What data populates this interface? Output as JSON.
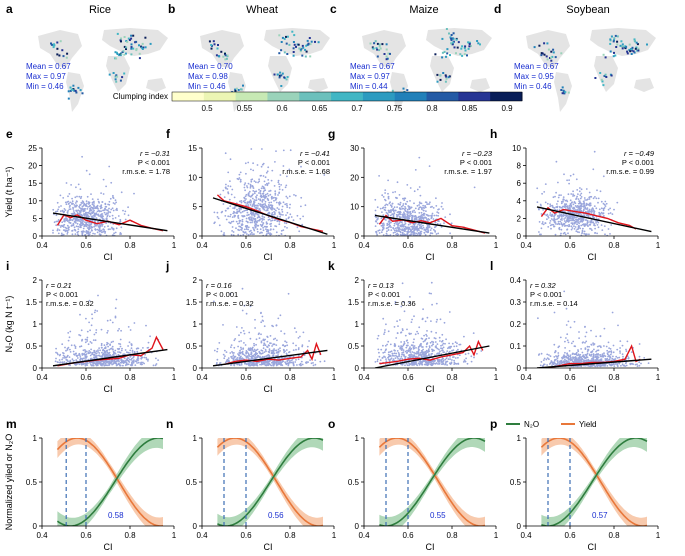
{
  "colors": {
    "scatter": "#9aa6dc",
    "mean_line": "#e0141b",
    "fit_line": "#000000",
    "n2o": "#2e7d3e",
    "n2o_band": "#8fc79a",
    "yield": "#e8773a",
    "yield_band": "#f5b891",
    "vline": "#3d6fb5",
    "stats_text": "#1a2fd0",
    "land": "#e4e4e4"
  },
  "panels_a_to_d": [
    {
      "letter": "a",
      "title": "Rice",
      "mean": "Mean = 0.67",
      "max": "Max = 0.97",
      "min": "Min = 0.46"
    },
    {
      "letter": "b",
      "title": "Wheat",
      "mean": "Mean = 0.70",
      "max": "Max = 0.98",
      "min": "Min = 0.46"
    },
    {
      "letter": "c",
      "title": "Maize",
      "mean": "Mean = 0.67",
      "max": "Max = 0.97",
      "min": "Min = 0.44"
    },
    {
      "letter": "d",
      "title": "Soybean",
      "mean": "Mean = 0.67",
      "max": "Max = 0.95",
      "min": "Min = 0.46"
    }
  ],
  "colorbar": {
    "label": "Clumping index",
    "ticks": [
      "0.5",
      "0.55",
      "0.6",
      "0.65",
      "0.7",
      "0.75",
      "0.8",
      "0.85",
      "0.9"
    ],
    "colors": [
      "#ffffcc",
      "#ecf5b4",
      "#c7e9b4",
      "#9ad3ba",
      "#6cc0bc",
      "#41b6c4",
      "#2c9bc0",
      "#2180b9",
      "#235aa5",
      "#253494",
      "#081d58"
    ]
  },
  "chart_data": [
    {
      "letter": "e",
      "type": "scatter",
      "crop": "Rice",
      "xlabel": "CI",
      "ylabel": "Yield (t ha⁻¹)",
      "xlim": [
        0.4,
        1.0
      ],
      "ylim": [
        0,
        25
      ],
      "xticks": [
        "0.4",
        "0.6",
        "0.8",
        "1"
      ],
      "yticks": [
        "0",
        "5",
        "10",
        "15",
        "20",
        "25"
      ],
      "r": "r = −0.31",
      "p": "P < 0.001",
      "rmse": "r.m.s.e. = 1.78",
      "fit": [
        [
          0.45,
          6.5
        ],
        [
          0.97,
          1.5
        ]
      ],
      "center": [
        0.6,
        5
      ],
      "spread": [
        0.075,
        2.8
      ],
      "mean_curve": [
        [
          0.47,
          3
        ],
        [
          0.5,
          6
        ],
        [
          0.53,
          5.2
        ],
        [
          0.56,
          6
        ],
        [
          0.6,
          4.5
        ],
        [
          0.65,
          3.5
        ],
        [
          0.7,
          4.2
        ],
        [
          0.75,
          3.2
        ],
        [
          0.8,
          4.5
        ],
        [
          0.85,
          3
        ],
        [
          0.9,
          2.2
        ],
        [
          0.95,
          1.5
        ]
      ]
    },
    {
      "letter": "f",
      "type": "scatter",
      "crop": "Wheat",
      "xlabel": "CI",
      "ylabel": "",
      "xlim": [
        0.4,
        1.0
      ],
      "ylim": [
        0,
        15
      ],
      "xticks": [
        "0.4",
        "0.6",
        "0.8",
        "1"
      ],
      "yticks": [
        "0",
        "5",
        "10",
        "15"
      ],
      "r": "r = −0.41",
      "p": "P < 0.001",
      "rmse": "r.m.s.e. = 1.68",
      "fit": [
        [
          0.45,
          6.5
        ],
        [
          0.97,
          0.3
        ]
      ],
      "center": [
        0.65,
        4.5
      ],
      "spread": [
        0.08,
        2.8
      ],
      "mean_curve": [
        [
          0.47,
          7
        ],
        [
          0.5,
          6
        ],
        [
          0.55,
          5.5
        ],
        [
          0.6,
          5
        ],
        [
          0.65,
          4.3
        ],
        [
          0.7,
          3.5
        ],
        [
          0.75,
          2.8
        ],
        [
          0.8,
          2.3
        ],
        [
          0.85,
          1.6
        ],
        [
          0.9,
          1.2
        ],
        [
          0.95,
          0.8
        ]
      ]
    },
    {
      "letter": "g",
      "type": "scatter",
      "crop": "Maize",
      "xlabel": "CI",
      "ylabel": "",
      "xlim": [
        0.4,
        1.0
      ],
      "ylim": [
        0,
        30
      ],
      "xticks": [
        "0.4",
        "0.6",
        "0.8",
        "1"
      ],
      "yticks": [
        "0",
        "10",
        "20",
        "30"
      ],
      "r": "r = −0.23",
      "p": "P < 0.001",
      "rmse": "r.m.s.e. = 1.97",
      "fit": [
        [
          0.45,
          7
        ],
        [
          0.97,
          1
        ]
      ],
      "center": [
        0.6,
        5
      ],
      "spread": [
        0.08,
        3.5
      ],
      "mean_curve": [
        [
          0.47,
          4
        ],
        [
          0.5,
          7
        ],
        [
          0.53,
          5
        ],
        [
          0.58,
          5.5
        ],
        [
          0.62,
          4.5
        ],
        [
          0.66,
          5.2
        ],
        [
          0.7,
          4.5
        ],
        [
          0.75,
          6
        ],
        [
          0.8,
          3.5
        ],
        [
          0.85,
          3
        ],
        [
          0.9,
          2
        ],
        [
          0.95,
          1
        ]
      ]
    },
    {
      "letter": "h",
      "type": "scatter",
      "crop": "Soybean",
      "xlabel": "CI",
      "ylabel": "",
      "xlim": [
        0.4,
        1.0
      ],
      "ylim": [
        0,
        10
      ],
      "xticks": [
        "0.4",
        "0.6",
        "0.8",
        "1"
      ],
      "yticks": [
        "0",
        "2",
        "4",
        "6",
        "8",
        "10"
      ],
      "r": "r = −0.49",
      "p": "P < 0.001",
      "rmse": "r.m.s.e. = 0.99",
      "fit": [
        [
          0.45,
          3.3
        ],
        [
          0.97,
          0.5
        ]
      ],
      "center": [
        0.62,
        2.5
      ],
      "spread": [
        0.07,
        1.0
      ],
      "mean_curve": [
        [
          0.47,
          2.2
        ],
        [
          0.5,
          3.2
        ],
        [
          0.53,
          2.6
        ],
        [
          0.57,
          3
        ],
        [
          0.62,
          2.8
        ],
        [
          0.67,
          2.6
        ],
        [
          0.72,
          2.3
        ],
        [
          0.77,
          2
        ],
        [
          0.82,
          1.5
        ],
        [
          0.87,
          1.2
        ],
        [
          0.9,
          0.8
        ]
      ]
    },
    {
      "letter": "i",
      "type": "scatter",
      "crop": "Rice",
      "xlabel": "CI",
      "ylabel": "N₂O (kg N t⁻¹)",
      "xlim": [
        0.4,
        1.0
      ],
      "ylim": [
        0,
        2
      ],
      "xticks": [
        "0.4",
        "0.6",
        "0.8",
        "1"
      ],
      "yticks": [
        "0",
        "0.5",
        "1",
        "1.5",
        "2"
      ],
      "r": "r = 0.21",
      "p": "P < 0.001",
      "rmse": "r.m.s.e. = 0.32",
      "fit": [
        [
          0.45,
          0.05
        ],
        [
          0.97,
          0.42
        ]
      ],
      "center": [
        0.68,
        0.18
      ],
      "spread": [
        0.1,
        0.2
      ],
      "mean_curve": [
        [
          0.47,
          0.05
        ],
        [
          0.55,
          0.12
        ],
        [
          0.6,
          0.15
        ],
        [
          0.65,
          0.18
        ],
        [
          0.7,
          0.2
        ],
        [
          0.75,
          0.22
        ],
        [
          0.8,
          0.3
        ],
        [
          0.85,
          0.28
        ],
        [
          0.9,
          0.45
        ],
        [
          0.92,
          0.7
        ],
        [
          0.95,
          0.42
        ]
      ]
    },
    {
      "letter": "j",
      "type": "scatter",
      "crop": "Wheat",
      "xlabel": "CI",
      "ylabel": "",
      "xlim": [
        0.4,
        1.0
      ],
      "ylim": [
        0,
        2
      ],
      "xticks": [
        "0.4",
        "0.6",
        "0.8",
        "1"
      ],
      "yticks": [
        "0",
        "0.5",
        "1",
        "1.5",
        "2"
      ],
      "r": "r = 0.16",
      "p": "P < 0.001",
      "rmse": "r.m.s.e. = 0.32",
      "fit": [
        [
          0.45,
          0.05
        ],
        [
          0.97,
          0.4
        ]
      ],
      "center": [
        0.68,
        0.18
      ],
      "spread": [
        0.1,
        0.2
      ],
      "mean_curve": [
        [
          0.5,
          0.08
        ],
        [
          0.55,
          0.15
        ],
        [
          0.6,
          0.18
        ],
        [
          0.65,
          0.15
        ],
        [
          0.7,
          0.2
        ],
        [
          0.75,
          0.18
        ],
        [
          0.8,
          0.22
        ],
        [
          0.85,
          0.25
        ],
        [
          0.88,
          0.4
        ],
        [
          0.9,
          0.2
        ],
        [
          0.92,
          0.55
        ],
        [
          0.94,
          0.3
        ]
      ]
    },
    {
      "letter": "k",
      "type": "scatter",
      "crop": "Maize",
      "xlabel": "CI",
      "ylabel": "",
      "xlim": [
        0.4,
        1.0
      ],
      "ylim": [
        0,
        2
      ],
      "xticks": [
        "0.4",
        "0.6",
        "0.8",
        "1"
      ],
      "yticks": [
        "0",
        "0.5",
        "1",
        "1.5",
        "2"
      ],
      "r": "r = 0.13",
      "p": "P < 0.001",
      "rmse": "r.m.s.e. = 0.36",
      "fit": [
        [
          0.45,
          0.0
        ],
        [
          0.97,
          0.5
        ]
      ],
      "center": [
        0.65,
        0.2
      ],
      "spread": [
        0.1,
        0.25
      ],
      "mean_curve": [
        [
          0.47,
          0.1
        ],
        [
          0.55,
          0.15
        ],
        [
          0.6,
          0.2
        ],
        [
          0.65,
          0.22
        ],
        [
          0.7,
          0.18
        ],
        [
          0.75,
          0.25
        ],
        [
          0.8,
          0.3
        ],
        [
          0.85,
          0.35
        ],
        [
          0.88,
          0.5
        ],
        [
          0.9,
          0.3
        ],
        [
          0.92,
          0.6
        ],
        [
          0.94,
          0.4
        ]
      ]
    },
    {
      "letter": "l",
      "type": "scatter",
      "crop": "Soybean",
      "xlabel": "CI",
      "ylabel": "",
      "xlim": [
        0.4,
        1.0
      ],
      "ylim": [
        0,
        0.4
      ],
      "xticks": [
        "0.4",
        "0.6",
        "0.8",
        "1"
      ],
      "yticks": [
        "0",
        "0.1",
        "0.2",
        "0.3",
        "0.4"
      ],
      "r": "r = 0.32",
      "p": "P < 0.001",
      "rmse": "r.m.s.e. = 0.14",
      "fit": [
        [
          0.45,
          0.0
        ],
        [
          0.97,
          0.04
        ]
      ],
      "center": [
        0.68,
        0.025
      ],
      "spread": [
        0.1,
        0.03
      ],
      "mean_curve": [
        [
          0.5,
          0.0
        ],
        [
          0.55,
          0.01
        ],
        [
          0.6,
          0.02
        ],
        [
          0.65,
          0.02
        ],
        [
          0.7,
          0.025
        ],
        [
          0.75,
          0.025
        ],
        [
          0.8,
          0.03
        ],
        [
          0.85,
          0.04
        ],
        [
          0.88,
          0.1
        ],
        [
          0.9,
          0.03
        ],
        [
          0.92,
          0.04
        ]
      ]
    },
    {
      "letter": "m",
      "type": "line",
      "crop": "Rice",
      "xlabel": "CI",
      "ylabel": "Normalized yiled or N₂O",
      "xlim": [
        0.4,
        1.0
      ],
      "ylim": [
        0,
        1
      ],
      "xticks": [
        "0.4",
        "0.6",
        "0.8",
        "1"
      ],
      "yticks": [
        "0",
        "0.5",
        "1"
      ],
      "vlines": [
        0.51,
        0.6
      ],
      "cross_label": "0.58",
      "n2o_min": 0.53,
      "yield_max": 0.56
    },
    {
      "letter": "n",
      "type": "line",
      "crop": "Wheat",
      "xlabel": "CI",
      "ylabel": "",
      "xlim": [
        0.4,
        1.0
      ],
      "ylim": [
        0,
        1
      ],
      "xticks": [
        "0.4",
        "0.6",
        "0.8",
        "1"
      ],
      "yticks": [
        "0",
        "0.5",
        "1"
      ],
      "vlines": [
        0.5,
        0.6
      ],
      "cross_label": "0.56",
      "n2o_min": 0.51,
      "yield_max": 0.55
    },
    {
      "letter": "o",
      "type": "line",
      "crop": "Maize",
      "xlabel": "CI",
      "ylabel": "",
      "xlim": [
        0.4,
        1.0
      ],
      "ylim": [
        0,
        1
      ],
      "xticks": [
        "0.4",
        "0.6",
        "0.8",
        "1"
      ],
      "yticks": [
        "0",
        "0.5",
        "1"
      ],
      "vlines": [
        0.5,
        0.6
      ],
      "cross_label": "0.55",
      "n2o_min": 0.5,
      "yield_max": 0.55
    },
    {
      "letter": "p",
      "type": "line",
      "crop": "Soybean",
      "xlabel": "CI",
      "ylabel": "",
      "xlim": [
        0.4,
        1.0
      ],
      "ylim": [
        0,
        1
      ],
      "xticks": [
        "0.4",
        "0.6",
        "0.8",
        "1"
      ],
      "yticks": [
        "0",
        "0.5",
        "1"
      ],
      "vlines": [
        0.5,
        0.6
      ],
      "cross_label": "0.57",
      "n2o_min": 0.5,
      "yield_max": 0.55,
      "legend": [
        {
          "name": "N₂O",
          "color": "#2e7d3e"
        },
        {
          "name": "Yield",
          "color": "#e8773a"
        }
      ]
    }
  ]
}
